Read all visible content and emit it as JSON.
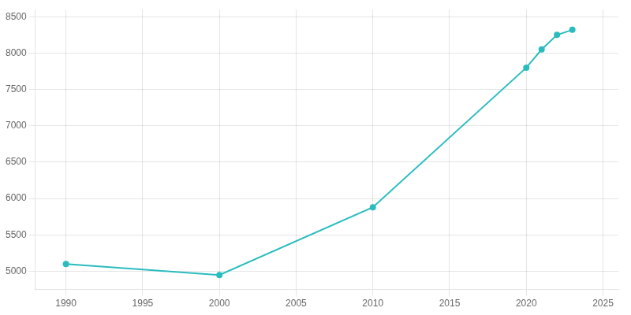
{
  "chart_data": {
    "type": "line",
    "x": [
      1990,
      2000,
      2010,
      2020,
      2021,
      2022,
      2023
    ],
    "values": [
      5100,
      4950,
      5880,
      7800,
      8050,
      8250,
      8320
    ],
    "color": "#2abcbf",
    "marker": "circle",
    "xlim": [
      1988,
      2026
    ],
    "ylim": [
      4750,
      8600
    ],
    "xticks": [
      1990,
      1995,
      2000,
      2005,
      2010,
      2015,
      2020,
      2025
    ],
    "yticks": [
      5000,
      5500,
      6000,
      6500,
      7000,
      7500,
      8000,
      8500
    ],
    "grid": true
  }
}
